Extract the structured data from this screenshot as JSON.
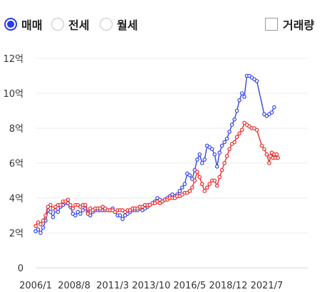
{
  "controls": {
    "radios": [
      {
        "label": "매매",
        "selected": true
      },
      {
        "label": "전세",
        "selected": false
      },
      {
        "label": "월세",
        "selected": false
      }
    ],
    "checkbox": {
      "label": "거래량",
      "checked": false
    }
  },
  "colors": {
    "series_a": "#3344e6",
    "series_b": "#ee2a2a",
    "accent": "#2b3be8"
  },
  "chart_data": {
    "type": "line",
    "x_ticks": [
      "2006/1",
      "2008/8",
      "2011/3",
      "2013/10",
      "2016/5",
      "2018/12",
      "2021/7"
    ],
    "x_range": [
      0,
      219
    ],
    "y_ticks": [
      "0",
      "2억",
      "4억",
      "6억",
      "8억",
      "10억",
      "12억"
    ],
    "ylim": [
      0,
      12
    ],
    "grid": true,
    "series": [
      {
        "color_key": "series_a",
        "points": [
          [
            0,
            2.1
          ],
          [
            2,
            2.2
          ],
          [
            4,
            2.0
          ],
          [
            6,
            2.3
          ],
          [
            8,
            2.7
          ],
          [
            10,
            3.3
          ],
          [
            12,
            3.2
          ],
          [
            14,
            2.9
          ],
          [
            16,
            3.3
          ],
          [
            18,
            3.2
          ],
          [
            20,
            3.5
          ],
          [
            22,
            3.6
          ],
          [
            24,
            3.7
          ],
          [
            26,
            3.7
          ],
          [
            28,
            3.5
          ],
          [
            30,
            3.1
          ],
          [
            32,
            3.0
          ],
          [
            34,
            3.2
          ],
          [
            36,
            3.1
          ],
          [
            38,
            3.3
          ],
          [
            40,
            3.4
          ],
          [
            42,
            3.2
          ],
          [
            44,
            3.0
          ],
          [
            46,
            3.2
          ],
          [
            48,
            3.3
          ],
          [
            50,
            3.3
          ],
          [
            52,
            3.3
          ],
          [
            54,
            3.3
          ],
          [
            56,
            3.3
          ],
          [
            58,
            3.3
          ],
          [
            60,
            3.3
          ],
          [
            62,
            3.4
          ],
          [
            64,
            3.2
          ],
          [
            66,
            3.0
          ],
          [
            68,
            3.0
          ],
          [
            70,
            2.8
          ],
          [
            72,
            3.0
          ],
          [
            74,
            3.1
          ],
          [
            76,
            3.2
          ],
          [
            78,
            3.3
          ],
          [
            80,
            3.3
          ],
          [
            82,
            3.3
          ],
          [
            84,
            3.4
          ],
          [
            86,
            3.3
          ],
          [
            88,
            3.4
          ],
          [
            90,
            3.5
          ],
          [
            92,
            3.6
          ],
          [
            94,
            3.7
          ],
          [
            96,
            3.8
          ],
          [
            98,
            4.0
          ],
          [
            100,
            3.9
          ],
          [
            102,
            3.8
          ],
          [
            104,
            3.9
          ],
          [
            106,
            4.0
          ],
          [
            108,
            4.1
          ],
          [
            110,
            4.2
          ],
          [
            112,
            4.1
          ],
          [
            114,
            4.2
          ],
          [
            116,
            4.4
          ],
          [
            118,
            4.6
          ],
          [
            120,
            4.8
          ],
          [
            122,
            5.4
          ],
          [
            124,
            5.3
          ],
          [
            126,
            5.1
          ],
          [
            128,
            5.6
          ],
          [
            130,
            6.2
          ],
          [
            132,
            6.5
          ],
          [
            134,
            6.0
          ],
          [
            136,
            6.2
          ],
          [
            138,
            7.0
          ],
          [
            140,
            6.9
          ],
          [
            142,
            6.8
          ],
          [
            144,
            6.5
          ],
          [
            146,
            5.8
          ],
          [
            148,
            6.6
          ],
          [
            150,
            7.0
          ],
          [
            152,
            7.2
          ],
          [
            154,
            7.4
          ],
          [
            156,
            7.8
          ],
          [
            158,
            8.2
          ],
          [
            160,
            8.5
          ],
          [
            162,
            9.0
          ],
          [
            164,
            9.6
          ],
          [
            166,
            10.0
          ],
          [
            168,
            9.8
          ],
          [
            170,
            11.0
          ],
          [
            172,
            11.0
          ],
          [
            174,
            10.9
          ],
          [
            176,
            10.8
          ],
          [
            178,
            10.7
          ],
          [
            184,
            8.8
          ],
          [
            186,
            8.7
          ],
          [
            188,
            8.8
          ],
          [
            190,
            8.9
          ],
          [
            192,
            9.2
          ]
        ]
      },
      {
        "color_key": "series_b",
        "points": [
          [
            0,
            2.4
          ],
          [
            2,
            2.6
          ],
          [
            4,
            2.5
          ],
          [
            6,
            2.7
          ],
          [
            8,
            3.0
          ],
          [
            10,
            3.5
          ],
          [
            12,
            3.6
          ],
          [
            14,
            3.4
          ],
          [
            16,
            3.5
          ],
          [
            18,
            3.6
          ],
          [
            20,
            3.6
          ],
          [
            22,
            3.8
          ],
          [
            24,
            3.8
          ],
          [
            26,
            3.9
          ],
          [
            28,
            3.6
          ],
          [
            30,
            3.4
          ],
          [
            32,
            3.6
          ],
          [
            34,
            3.6
          ],
          [
            36,
            3.5
          ],
          [
            38,
            3.6
          ],
          [
            40,
            3.6
          ],
          [
            42,
            3.1
          ],
          [
            44,
            3.4
          ],
          [
            46,
            3.3
          ],
          [
            48,
            3.4
          ],
          [
            50,
            3.4
          ],
          [
            52,
            3.4
          ],
          [
            54,
            3.5
          ],
          [
            56,
            3.4
          ],
          [
            58,
            3.3
          ],
          [
            60,
            3.3
          ],
          [
            62,
            3.3
          ],
          [
            64,
            3.2
          ],
          [
            66,
            3.3
          ],
          [
            68,
            3.3
          ],
          [
            70,
            3.3
          ],
          [
            72,
            3.2
          ],
          [
            74,
            3.3
          ],
          [
            76,
            3.3
          ],
          [
            78,
            3.4
          ],
          [
            80,
            3.4
          ],
          [
            82,
            3.4
          ],
          [
            84,
            3.5
          ],
          [
            86,
            3.5
          ],
          [
            88,
            3.6
          ],
          [
            90,
            3.6
          ],
          [
            92,
            3.6
          ],
          [
            94,
            3.7
          ],
          [
            96,
            3.7
          ],
          [
            98,
            3.8
          ],
          [
            100,
            3.7
          ],
          [
            102,
            3.8
          ],
          [
            104,
            3.9
          ],
          [
            106,
            3.9
          ],
          [
            108,
            4.0
          ],
          [
            110,
            4.0
          ],
          [
            112,
            4.0
          ],
          [
            114,
            4.1
          ],
          [
            116,
            4.1
          ],
          [
            118,
            4.2
          ],
          [
            120,
            4.3
          ],
          [
            122,
            4.3
          ],
          [
            124,
            4.4
          ],
          [
            126,
            4.6
          ],
          [
            128,
            5.0
          ],
          [
            130,
            5.5
          ],
          [
            132,
            5.2
          ],
          [
            134,
            4.8
          ],
          [
            136,
            4.4
          ],
          [
            138,
            4.6
          ],
          [
            140,
            4.8
          ],
          [
            142,
            5.0
          ],
          [
            144,
            5.0
          ],
          [
            146,
            4.7
          ],
          [
            148,
            5.2
          ],
          [
            150,
            5.6
          ],
          [
            152,
            6.0
          ],
          [
            154,
            6.4
          ],
          [
            156,
            6.8
          ],
          [
            158,
            7.1
          ],
          [
            160,
            7.2
          ],
          [
            162,
            7.5
          ],
          [
            164,
            7.7
          ],
          [
            166,
            7.9
          ],
          [
            168,
            8.3
          ],
          [
            170,
            8.2
          ],
          [
            172,
            8.1
          ],
          [
            174,
            8.0
          ],
          [
            176,
            8.0
          ],
          [
            178,
            7.9
          ],
          [
            182,
            7.0
          ],
          [
            184,
            6.8
          ],
          [
            186,
            6.5
          ],
          [
            188,
            6.0
          ],
          [
            189,
            6.4
          ],
          [
            190,
            6.6
          ],
          [
            191,
            6.3
          ],
          [
            192,
            6.5
          ],
          [
            193,
            6.3
          ],
          [
            194,
            6.5
          ],
          [
            195,
            6.3
          ]
        ]
      }
    ]
  }
}
